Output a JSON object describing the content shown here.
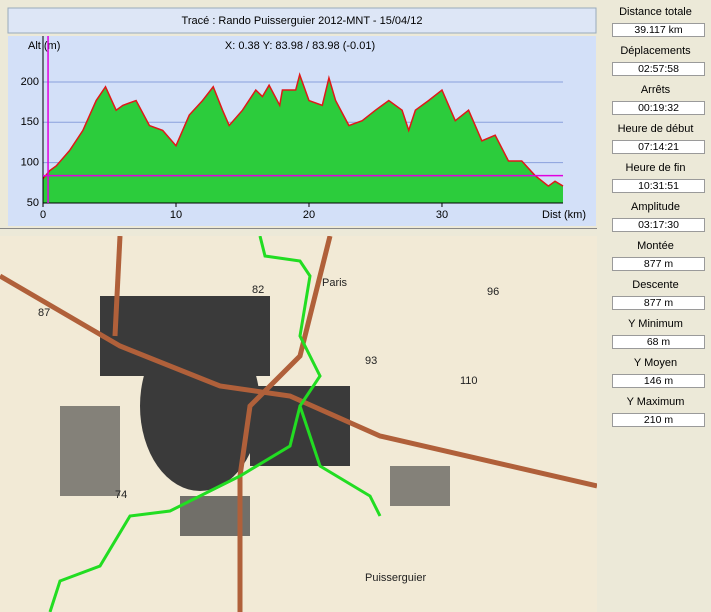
{
  "chart_data": {
    "type": "area",
    "title": "Tracé : Rando Puisserguier 2012-MNT - 15/04/12",
    "cursor_text": "X: 0.38 Y: 83.98 / 83.98 (-0.01)",
    "y_label": "Alt (m)",
    "x_label": "Dist (km)",
    "x": [
      0,
      0.5,
      1,
      2,
      3,
      4,
      4.7,
      5.5,
      6,
      7,
      8,
      9,
      10,
      11,
      12,
      12.8,
      13.5,
      14,
      15,
      16,
      16.5,
      17,
      17.8,
      18,
      19,
      19.3,
      20,
      21,
      21.5,
      22,
      23,
      24,
      25,
      26,
      27,
      27.5,
      28,
      29,
      30,
      31,
      32,
      33,
      34,
      35,
      36,
      37,
      38,
      38.5,
      39.1
    ],
    "values": [
      80,
      90,
      96,
      115,
      140,
      177,
      194,
      165,
      171,
      177,
      146,
      140,
      121,
      159,
      177,
      194,
      165,
      146,
      165,
      190,
      182,
      196,
      171,
      190,
      190,
      209,
      177,
      171,
      205,
      177,
      146,
      152,
      165,
      177,
      165,
      140,
      165,
      177,
      190,
      152,
      165,
      127,
      134,
      102,
      102,
      84,
      71,
      77,
      71
    ],
    "color": "#2ccc3c",
    "line_color": "#e01818",
    "cursor_x": 0.38,
    "cursor_y": 83.98,
    "cursor_color": "#e000e0",
    "xlim": [
      0,
      39.1
    ],
    "ylim": [
      50,
      252
    ],
    "xticks": [
      0,
      10,
      20,
      30
    ],
    "yticks": [
      50,
      100,
      150,
      200
    ],
    "grid": true
  },
  "stats": [
    {
      "label": "Distance totale",
      "value": "39.117 km"
    },
    {
      "label": "Déplacements",
      "value": "02:57:58"
    },
    {
      "label": "Arrêts",
      "value": "00:19:32"
    },
    {
      "label": "Heure de début",
      "value": "07:14:21"
    },
    {
      "label": "Heure de fin",
      "value": "10:31:51"
    },
    {
      "label": "Amplitude",
      "value": "03:17:30"
    },
    {
      "label": "Montée",
      "value": "877 m"
    },
    {
      "label": "Descente",
      "value": "877 m"
    },
    {
      "label": "Y Minimum",
      "value": "68 m"
    },
    {
      "label": "Y Moyen",
      "value": "146 m"
    },
    {
      "label": "Y Maximum",
      "value": "210 m"
    }
  ],
  "map": {
    "labels": [
      "Paris",
      "Puisserguier",
      "87",
      "82",
      "96",
      "93",
      "110",
      "74"
    ]
  }
}
